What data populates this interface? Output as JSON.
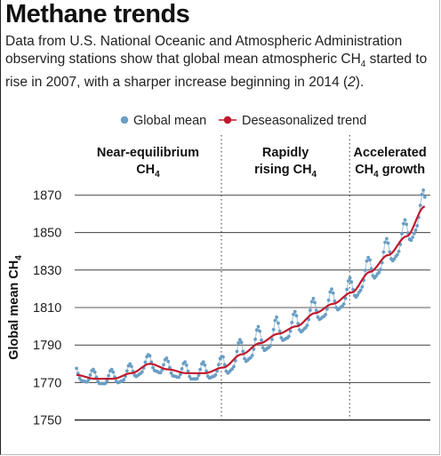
{
  "header": {
    "title": "Methane trends",
    "subtitle_main": "Data from U.S. National Oceanic and Atmospheric Administration observing stations show that global mean atmospheric CH",
    "subtitle_sub": "4",
    "subtitle_mid": " started to rise in 2007, with a sharper increase beginning in 2014 (",
    "subtitle_ref": "2",
    "subtitle_end": ")."
  },
  "colors": {
    "global_mean": "#6a9ec4",
    "trend": "#c0182c",
    "grid": "#222222",
    "divider": "#444444"
  },
  "chart_data": {
    "type": "line",
    "title": "Methane trends",
    "xlabel": "",
    "ylabel": "Global mean CH4",
    "ylabel_main": "Global mean  CH",
    "ylabel_sub": "4",
    "ylim": [
      1750,
      1875
    ],
    "yticks": [
      "1870",
      "1850",
      "1830",
      "1810",
      "1790",
      "1770",
      "1750"
    ],
    "xlim": [
      1998.9,
      2018.3
    ],
    "legend": {
      "placement": "top",
      "items": [
        {
          "label": "Global mean",
          "marker": "dot"
        },
        {
          "label": "Deseasonalized trend",
          "marker": "dot-line"
        }
      ]
    },
    "phases": [
      {
        "line1": "Near-equilibrium",
        "line2": "CH",
        "sub": "4",
        "span": [
          1998.9,
          2006.9
        ]
      },
      {
        "line1": "Rapidly",
        "line2": "rising CH",
        "sub": "4",
        "span": [
          2006.9,
          2013.9
        ]
      },
      {
        "line1": "Accelerated",
        "line2": "CH",
        "line2_sub": "4",
        "line2_after": " growth",
        "span": [
          2013.9,
          2018.3
        ]
      }
    ],
    "dividers_x": [
      2006.9,
      2013.9
    ],
    "series": [
      {
        "name": "Deseasonalized trend",
        "x": [
          1999.0,
          2000.0,
          2001.0,
          2002.0,
          2003.0,
          2004.0,
          2005.0,
          2006.0,
          2007.0,
          2008.0,
          2009.0,
          2010.0,
          2011.0,
          2012.0,
          2013.0,
          2014.0,
          2015.0,
          2016.0,
          2017.0,
          2018.0
        ],
        "values": [
          1774,
          1772,
          1772,
          1775,
          1780,
          1777,
          1775,
          1775,
          1778,
          1785,
          1791,
          1796,
          1800,
          1807,
          1812,
          1818,
          1829,
          1838,
          1848,
          1864
        ]
      },
      {
        "name": "Global mean",
        "x_start": 1999.0,
        "x_end": 2018.0,
        "annual_points": 12,
        "trend_ref": "Deseasonalized trend",
        "amplitudes": [
          5,
          5,
          5,
          5,
          6,
          6,
          6,
          6,
          8,
          9,
          9,
          8,
          8,
          8,
          8,
          8,
          9,
          9,
          9,
          7
        ]
      }
    ]
  }
}
